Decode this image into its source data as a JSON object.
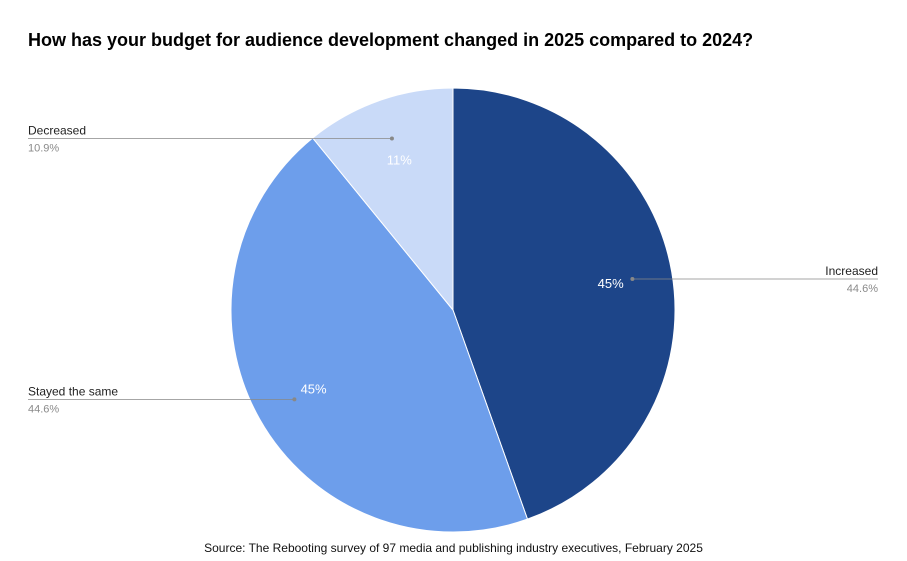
{
  "chart_data": {
    "type": "pie",
    "title": "How has your budget for audience development changed in 2025 compared to 2024?",
    "categories": [
      "Increased",
      "Stayed the same",
      "Decreased"
    ],
    "values": [
      44.6,
      44.6,
      10.9
    ],
    "slice_labels": [
      "45%",
      "45%",
      "11%"
    ],
    "legend_values": [
      "44.6%",
      "44.6%",
      "10.9%"
    ],
    "colors": [
      "#1d4589",
      "#6d9eeb",
      "#c9daf8"
    ],
    "legend": "callouts"
  },
  "source": "Source: The Rebooting survey of 97 media and publishing industry executives, February 2025"
}
